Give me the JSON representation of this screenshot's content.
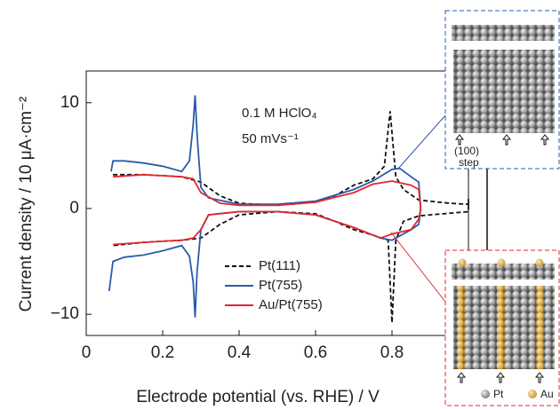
{
  "chart_data": {
    "type": "line",
    "xlabel": "Electrode potential (vs. RHE) / V",
    "ylabel": "Current density / 10 μA·cm⁻²",
    "annotations": [
      "0.1 M HClO₄",
      "50 mVs⁻¹"
    ],
    "inset_labels": [
      "(100)",
      "step",
      "Pt",
      "Au"
    ],
    "xlim": [
      0,
      1.0
    ],
    "ylim": [
      -12,
      13
    ],
    "xticks": [
      0,
      0.2,
      0.4,
      0.6,
      0.8
    ],
    "yticks": [
      {
        "value": -10,
        "label": "−10"
      },
      0,
      10
    ],
    "legend": "lower left",
    "series": [
      {
        "name": "Pt(111)",
        "color": "#111111",
        "dash": "5,3",
        "x": [
          0.07,
          0.15,
          0.25,
          0.3,
          0.35,
          0.4,
          0.5,
          0.6,
          0.65,
          0.7,
          0.75,
          0.78,
          0.795,
          0.81,
          0.83,
          0.87,
          0.95,
          1.0,
          1.0,
          1.0,
          0.9,
          0.87,
          0.83,
          0.81,
          0.8,
          0.79,
          0.75,
          0.7,
          0.65,
          0.6,
          0.5,
          0.4,
          0.35,
          0.3,
          0.25,
          0.15,
          0.07
        ],
        "values": [
          3.2,
          3.2,
          3.0,
          2.5,
          1.2,
          0.5,
          0.3,
          0.6,
          1.2,
          2.2,
          2.8,
          4,
          9.2,
          3,
          1.8,
          0.8,
          0.5,
          0.4,
          0.9,
          -0.3,
          -0.6,
          -0.7,
          -1.2,
          -3,
          -10.8,
          -3,
          -2.5,
          -2,
          -1.2,
          -0.5,
          -0.3,
          -0.6,
          -1.5,
          -2.8,
          -3.0,
          -3.2,
          -3.5
        ]
      },
      {
        "name": "Pt(755)",
        "color": "#2a5caa",
        "dash": "none",
        "x": [
          0.065,
          0.07,
          0.1,
          0.15,
          0.2,
          0.25,
          0.27,
          0.28,
          0.285,
          0.29,
          0.3,
          0.32,
          0.4,
          0.5,
          0.6,
          0.7,
          0.75,
          0.8,
          0.82,
          0.85,
          0.87,
          0.875,
          0.87,
          0.85,
          0.8,
          0.77,
          0.7,
          0.6,
          0.5,
          0.4,
          0.32,
          0.3,
          0.29,
          0.285,
          0.28,
          0.27,
          0.25,
          0.2,
          0.15,
          0.1,
          0.07,
          0.06
        ],
        "values": [
          3.5,
          4.5,
          4.5,
          4.3,
          4.0,
          3.5,
          4.5,
          8,
          10.7,
          7,
          2,
          1.0,
          0.4,
          0.4,
          0.7,
          1.8,
          2.6,
          3.7,
          3.8,
          3.0,
          2.5,
          0,
          -1.5,
          -2,
          -3,
          -2.8,
          -1.8,
          -0.6,
          -0.3,
          -0.3,
          -0.6,
          -2,
          -6,
          -10.3,
          -7,
          -4.5,
          -3.5,
          -4,
          -4.4,
          -4.6,
          -5,
          -7.8
        ]
      },
      {
        "name": "Au/Pt(755)",
        "color": "#e0282d",
        "dash": "none",
        "x": [
          0.07,
          0.15,
          0.2,
          0.25,
          0.28,
          0.3,
          0.35,
          0.4,
          0.5,
          0.6,
          0.7,
          0.75,
          0.8,
          0.85,
          0.87,
          0.875,
          0.87,
          0.85,
          0.8,
          0.77,
          0.7,
          0.6,
          0.5,
          0.4,
          0.32,
          0.3,
          0.28,
          0.25,
          0.2,
          0.15,
          0.07
        ],
        "values": [
          3,
          3.2,
          3.1,
          3.0,
          2.8,
          1.5,
          0.5,
          0.3,
          0.3,
          0.6,
          1.5,
          2.3,
          2.6,
          2.2,
          1.8,
          0,
          -1,
          -2,
          -2.4,
          -2.8,
          -1.8,
          -0.6,
          -0.3,
          -0.3,
          -0.6,
          -2,
          -2.8,
          -3.0,
          -3.1,
          -3.2,
          -3.4
        ]
      }
    ]
  }
}
